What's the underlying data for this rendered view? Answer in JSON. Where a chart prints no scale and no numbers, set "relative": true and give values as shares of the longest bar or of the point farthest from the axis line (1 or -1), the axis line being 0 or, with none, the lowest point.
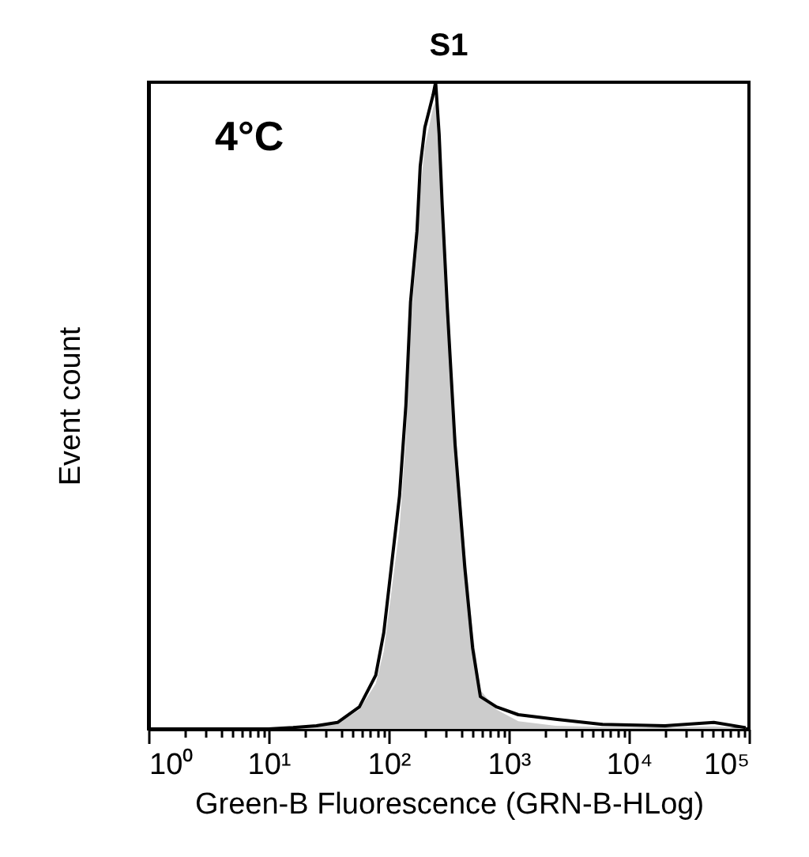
{
  "chart_data": {
    "type": "area",
    "title": "S1",
    "xlabel": "Green-B Fluorescence (GRN-B-HLog)",
    "ylabel": "Event count",
    "relative": true,
    "log": "x",
    "grid": false,
    "annotations": [
      "4°C"
    ],
    "x": [
      10,
      16,
      25,
      37.5,
      57,
      78,
      91,
      123,
      139,
      152,
      172,
      183,
      200,
      234,
      246,
      263,
      279,
      308,
      357,
      430,
      500,
      580,
      790,
      1200,
      2450,
      6000,
      20000,
      51000,
      94000
    ],
    "series": [
      {
        "color": "#cccccc",
        "values": [
          0,
          0.001,
          0.004,
          0.008,
          0.03,
          0.07,
          0.12,
          0.31,
          0.45,
          0.62,
          0.74,
          0.83,
          0.9,
          0.96,
          0.97,
          0.93,
          0.83,
          0.68,
          0.47,
          0.28,
          0.15,
          0.06,
          0.03,
          0.012,
          0.005,
          0.003,
          0.002,
          0.004,
          0.001
        ]
      },
      {
        "type": "line",
        "color": "#000000",
        "values": [
          0,
          0.002,
          0.005,
          0.01,
          0.034,
          0.083,
          0.149,
          0.36,
          0.5,
          0.66,
          0.77,
          0.87,
          0.93,
          0.98,
          1,
          0.92,
          0.81,
          0.65,
          0.44,
          0.25,
          0.125,
          0.05,
          0.034,
          0.022,
          0.015,
          0.007,
          0.005,
          0.01,
          0.002
        ]
      }
    ],
    "xlim": [
      1,
      100000
    ],
    "xticks": [
      {
        "value": 1,
        "label": "10⁰"
      },
      {
        "value": 2,
        "label": null
      },
      {
        "value": 3,
        "label": null
      },
      {
        "value": 4,
        "label": null
      },
      {
        "value": 5,
        "label": null
      },
      {
        "value": 6,
        "label": null
      },
      {
        "value": 7,
        "label": null
      },
      {
        "value": 8,
        "label": null
      },
      {
        "value": 9,
        "label": null
      },
      {
        "value": 10,
        "label": "10¹"
      },
      {
        "value": 20,
        "label": null
      },
      {
        "value": 30,
        "label": null
      },
      {
        "value": 40,
        "label": null
      },
      {
        "value": 50,
        "label": null
      },
      {
        "value": 60,
        "label": null
      },
      {
        "value": 70,
        "label": null
      },
      {
        "value": 80,
        "label": null
      },
      {
        "value": 90,
        "label": null
      },
      {
        "value": 100,
        "label": "10²"
      },
      {
        "value": 200,
        "label": null
      },
      {
        "value": 300,
        "label": null
      },
      {
        "value": 400,
        "label": null
      },
      {
        "value": 500,
        "label": null
      },
      {
        "value": 600,
        "label": null
      },
      {
        "value": 700,
        "label": null
      },
      {
        "value": 800,
        "label": null
      },
      {
        "value": 900,
        "label": null
      },
      {
        "value": 1000,
        "label": "10³"
      },
      {
        "value": 2000,
        "label": null
      },
      {
        "value": 3000,
        "label": null
      },
      {
        "value": 4000,
        "label": null
      },
      {
        "value": 5000,
        "label": null
      },
      {
        "value": 6000,
        "label": null
      },
      {
        "value": 7000,
        "label": null
      },
      {
        "value": 8000,
        "label": null
      },
      {
        "value": 9000,
        "label": null
      },
      {
        "value": 10000,
        "label": "10⁴"
      },
      {
        "value": 20000,
        "label": null
      },
      {
        "value": 30000,
        "label": null
      },
      {
        "value": 40000,
        "label": null
      },
      {
        "value": 50000,
        "label": null
      },
      {
        "value": 60000,
        "label": null
      },
      {
        "value": 70000,
        "label": null
      },
      {
        "value": 80000,
        "label": null
      },
      {
        "value": 90000,
        "label": null
      },
      {
        "value": 100000,
        "label": "10⁵"
      }
    ]
  }
}
